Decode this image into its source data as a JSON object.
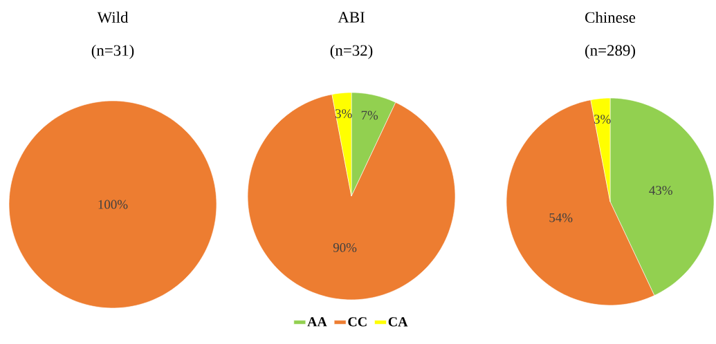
{
  "chart_data": [
    {
      "type": "pie",
      "title": "Wild",
      "subtitle": "(n=31)",
      "categories": [
        null
      ],
      "values": [
        100
      ],
      "colors": [
        "#ed7d31"
      ],
      "value_labels": [
        "100%"
      ]
    },
    {
      "type": "pie",
      "title": "ABI",
      "subtitle": "(n=32)",
      "categories": [
        "AA",
        "CC",
        "CA"
      ],
      "values": [
        7,
        90,
        3
      ],
      "colors": [
        "#92d050",
        "#ed7d31",
        "#ffff00"
      ],
      "value_labels": [
        "7%",
        "90%",
        "3%"
      ],
      "legend": "bottom"
    },
    {
      "type": "pie",
      "title": "Chinese",
      "subtitle": "(n=289)",
      "categories": [
        null,
        null,
        null
      ],
      "values": [
        43,
        54,
        3
      ],
      "colors": [
        "#92d050",
        "#ed7d31",
        "#ffff00"
      ],
      "value_labels": [
        "43%",
        "54%",
        "3%"
      ]
    }
  ]
}
